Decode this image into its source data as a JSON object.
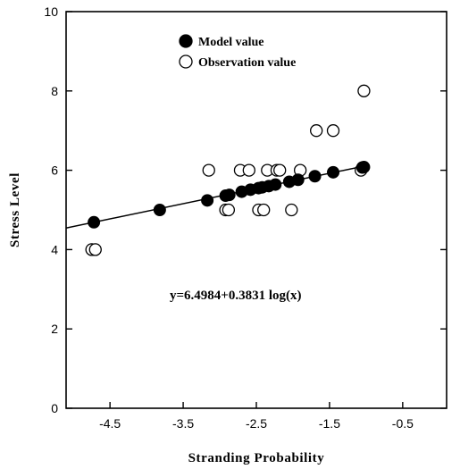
{
  "chart_data": {
    "type": "scatter",
    "title": "",
    "xlabel": "Stranding Probability",
    "ylabel": "Stress Level",
    "xlim": [
      -5.1,
      0.1
    ],
    "ylim": [
      0,
      10
    ],
    "xticks": [
      "-4.5",
      "-3.5",
      "-2.5",
      "-1.5",
      "-0.5"
    ],
    "xtick_values": [
      -4.5,
      -3.5,
      -2.5,
      -1.5,
      -0.5
    ],
    "yticks": [
      "0",
      "2",
      "4",
      "6",
      "8",
      "10"
    ],
    "ytick_values": [
      0,
      2,
      4,
      6,
      8,
      10
    ],
    "grid": false,
    "legend_position": "top-left",
    "annotation": "y=6.4984+0.3831 log(x)",
    "fit_line": {
      "intercept": 6.4984,
      "slope": 0.3831,
      "x_range": [
        -5.1,
        -1.0
      ]
    },
    "series": [
      {
        "name": "Model value",
        "marker": "filled-circle",
        "points": [
          [
            -4.72,
            4.69
          ],
          [
            -3.82,
            5.0
          ],
          [
            -3.17,
            5.24
          ],
          [
            -2.92,
            5.36
          ],
          [
            -2.87,
            5.38
          ],
          [
            -2.7,
            5.46
          ],
          [
            -2.58,
            5.51
          ],
          [
            -2.47,
            5.55
          ],
          [
            -2.42,
            5.57
          ],
          [
            -2.33,
            5.6
          ],
          [
            -2.24,
            5.64
          ],
          [
            -2.05,
            5.71
          ],
          [
            -1.93,
            5.76
          ],
          [
            -1.7,
            5.85
          ],
          [
            -1.45,
            5.95
          ],
          [
            -1.05,
            6.07
          ],
          [
            -1.03,
            6.08
          ]
        ]
      },
      {
        "name": "Observation value",
        "marker": "open-circle",
        "points": [
          [
            -4.75,
            4.0
          ],
          [
            -4.7,
            4.0
          ],
          [
            -3.15,
            6.0
          ],
          [
            -2.92,
            5.0
          ],
          [
            -2.88,
            5.0
          ],
          [
            -2.72,
            6.0
          ],
          [
            -2.6,
            6.0
          ],
          [
            -2.47,
            5.0
          ],
          [
            -2.4,
            5.0
          ],
          [
            -2.35,
            6.0
          ],
          [
            -2.22,
            6.0
          ],
          [
            -2.18,
            6.0
          ],
          [
            -2.02,
            5.0
          ],
          [
            -1.9,
            6.0
          ],
          [
            -1.68,
            7.0
          ],
          [
            -1.45,
            7.0
          ],
          [
            -1.07,
            6.0
          ],
          [
            -1.03,
            8.0
          ]
        ]
      }
    ]
  }
}
